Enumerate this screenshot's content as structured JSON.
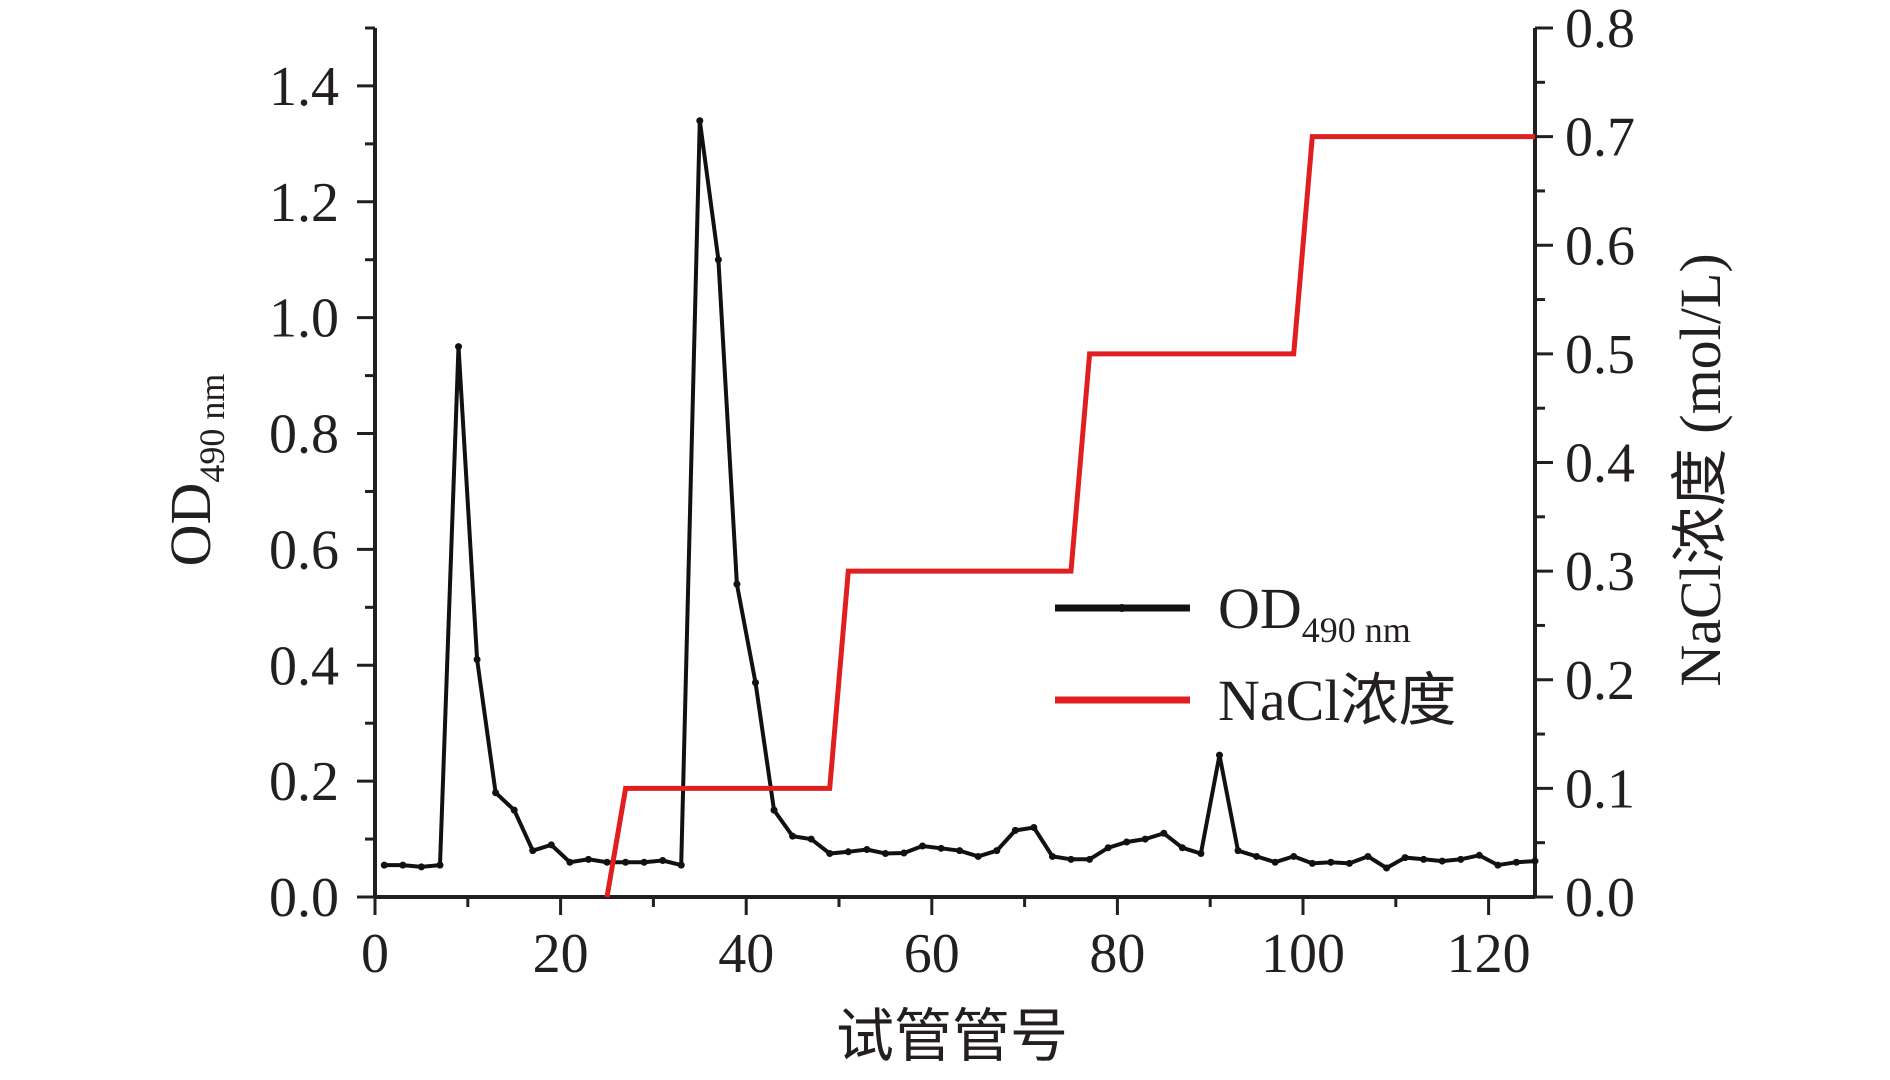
{
  "chart_data": {
    "type": "line",
    "xlabel": "试管管号",
    "ylabel_left": {
      "main": "OD",
      "sub": "490 nm"
    },
    "ylabel_right": "NaCl浓度 (mol/L)",
    "xlim": [
      0,
      125
    ],
    "ylim_left": [
      0,
      1.5
    ],
    "ylim_right": [
      0,
      0.8
    ],
    "x_ticks": [
      "0",
      "20",
      "40",
      "60",
      "80",
      "100",
      "120"
    ],
    "y_left_ticks": [
      "0.0",
      "0.2",
      "0.4",
      "0.6",
      "0.8",
      "1.0",
      "1.2",
      "1.4"
    ],
    "y_right_ticks": [
      "0.0",
      "0.1",
      "0.2",
      "0.3",
      "0.4",
      "0.5",
      "0.6",
      "0.7",
      "0.8"
    ],
    "grid": false,
    "legend_position": "center-right",
    "series": [
      {
        "name": "OD",
        "name_sub": "490 nm",
        "axis": "left",
        "color": "#111111",
        "marker": "dot",
        "x": [
          1,
          3,
          5,
          7,
          9,
          11,
          13,
          15,
          17,
          19,
          21,
          23,
          25,
          27,
          29,
          31,
          33,
          35,
          37,
          39,
          41,
          43,
          45,
          47,
          49,
          51,
          53,
          55,
          57,
          59,
          61,
          63,
          65,
          67,
          69,
          71,
          73,
          75,
          77,
          79,
          81,
          83,
          85,
          87,
          89,
          91,
          93,
          95,
          97,
          99,
          101,
          103,
          105,
          107,
          109,
          111,
          113,
          115,
          117,
          119,
          121,
          123,
          125
        ],
        "y": [
          0.055,
          0.055,
          0.052,
          0.055,
          0.95,
          0.41,
          0.18,
          0.15,
          0.08,
          0.09,
          0.06,
          0.065,
          0.06,
          0.06,
          0.06,
          0.063,
          0.055,
          1.34,
          1.1,
          0.54,
          0.37,
          0.15,
          0.105,
          0.1,
          0.075,
          0.078,
          0.082,
          0.075,
          0.076,
          0.088,
          0.084,
          0.08,
          0.07,
          0.08,
          0.115,
          0.12,
          0.07,
          0.065,
          0.065,
          0.085,
          0.095,
          0.1,
          0.11,
          0.085,
          0.075,
          0.245,
          0.08,
          0.07,
          0.06,
          0.07,
          0.058,
          0.06,
          0.058,
          0.07,
          0.05,
          0.068,
          0.065,
          0.062,
          0.065,
          0.072,
          0.055,
          0.06,
          0.062
        ]
      },
      {
        "name": "NaCl浓度",
        "axis": "right",
        "color": "#e02020",
        "x": [
          25,
          27,
          49,
          51,
          75,
          77,
          99,
          101,
          125
        ],
        "y": [
          0,
          0.1,
          0.1,
          0.3,
          0.3,
          0.5,
          0.5,
          0.7,
          0.7
        ]
      }
    ]
  }
}
